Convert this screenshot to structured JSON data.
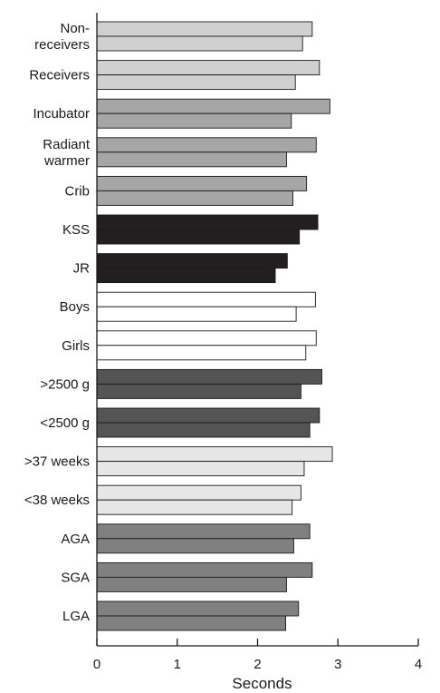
{
  "chart_data": {
    "type": "bar",
    "orientation": "horizontal",
    "title": "",
    "xlabel": "Seconds",
    "ylabel": "",
    "xlim": [
      0,
      4
    ],
    "xticks": [
      "0",
      "1",
      "2",
      "3",
      "4"
    ],
    "grid": false,
    "categories": [
      {
        "label": [
          "Non-",
          "receivers"
        ],
        "color": "#d0d0d0",
        "values": [
          2.68,
          2.56
        ]
      },
      {
        "label": [
          "Receivers"
        ],
        "color": "#d0d0d0",
        "values": [
          2.77,
          2.47
        ]
      },
      {
        "label": [
          "Incubator"
        ],
        "color": "#a6a6a6",
        "values": [
          2.9,
          2.42
        ]
      },
      {
        "label": [
          "Radiant",
          "warmer"
        ],
        "color": "#a6a6a6",
        "values": [
          2.73,
          2.36
        ]
      },
      {
        "label": [
          "Crib"
        ],
        "color": "#a6a6a6",
        "values": [
          2.61,
          2.44
        ]
      },
      {
        "label": [
          "KSS"
        ],
        "color": "#231f20",
        "values": [
          2.75,
          2.52
        ]
      },
      {
        "label": [
          "JR"
        ],
        "color": "#231f20",
        "values": [
          2.37,
          2.22
        ]
      },
      {
        "label": [
          "Boys"
        ],
        "color": "#ffffff",
        "values": [
          2.72,
          2.48
        ]
      },
      {
        "label": [
          "Girls"
        ],
        "color": "#ffffff",
        "values": [
          2.73,
          2.6
        ]
      },
      {
        "label": [
          ">2500 g"
        ],
        "color": "#545454",
        "values": [
          2.8,
          2.54
        ]
      },
      {
        "label": [
          "<2500 g"
        ],
        "color": "#545454",
        "values": [
          2.77,
          2.65
        ]
      },
      {
        "label": [
          ">37 weeks"
        ],
        "color": "#e6e6e6",
        "values": [
          2.93,
          2.58
        ]
      },
      {
        "label": [
          "<38 weeks"
        ],
        "color": "#e6e6e6",
        "values": [
          2.54,
          2.43
        ]
      },
      {
        "label": [
          "AGA"
        ],
        "color": "#808080",
        "values": [
          2.65,
          2.45
        ]
      },
      {
        "label": [
          "SGA"
        ],
        "color": "#808080",
        "values": [
          2.68,
          2.36
        ]
      },
      {
        "label": [
          "LGA"
        ],
        "color": "#808080",
        "values": [
          2.51,
          2.35
        ]
      }
    ]
  }
}
